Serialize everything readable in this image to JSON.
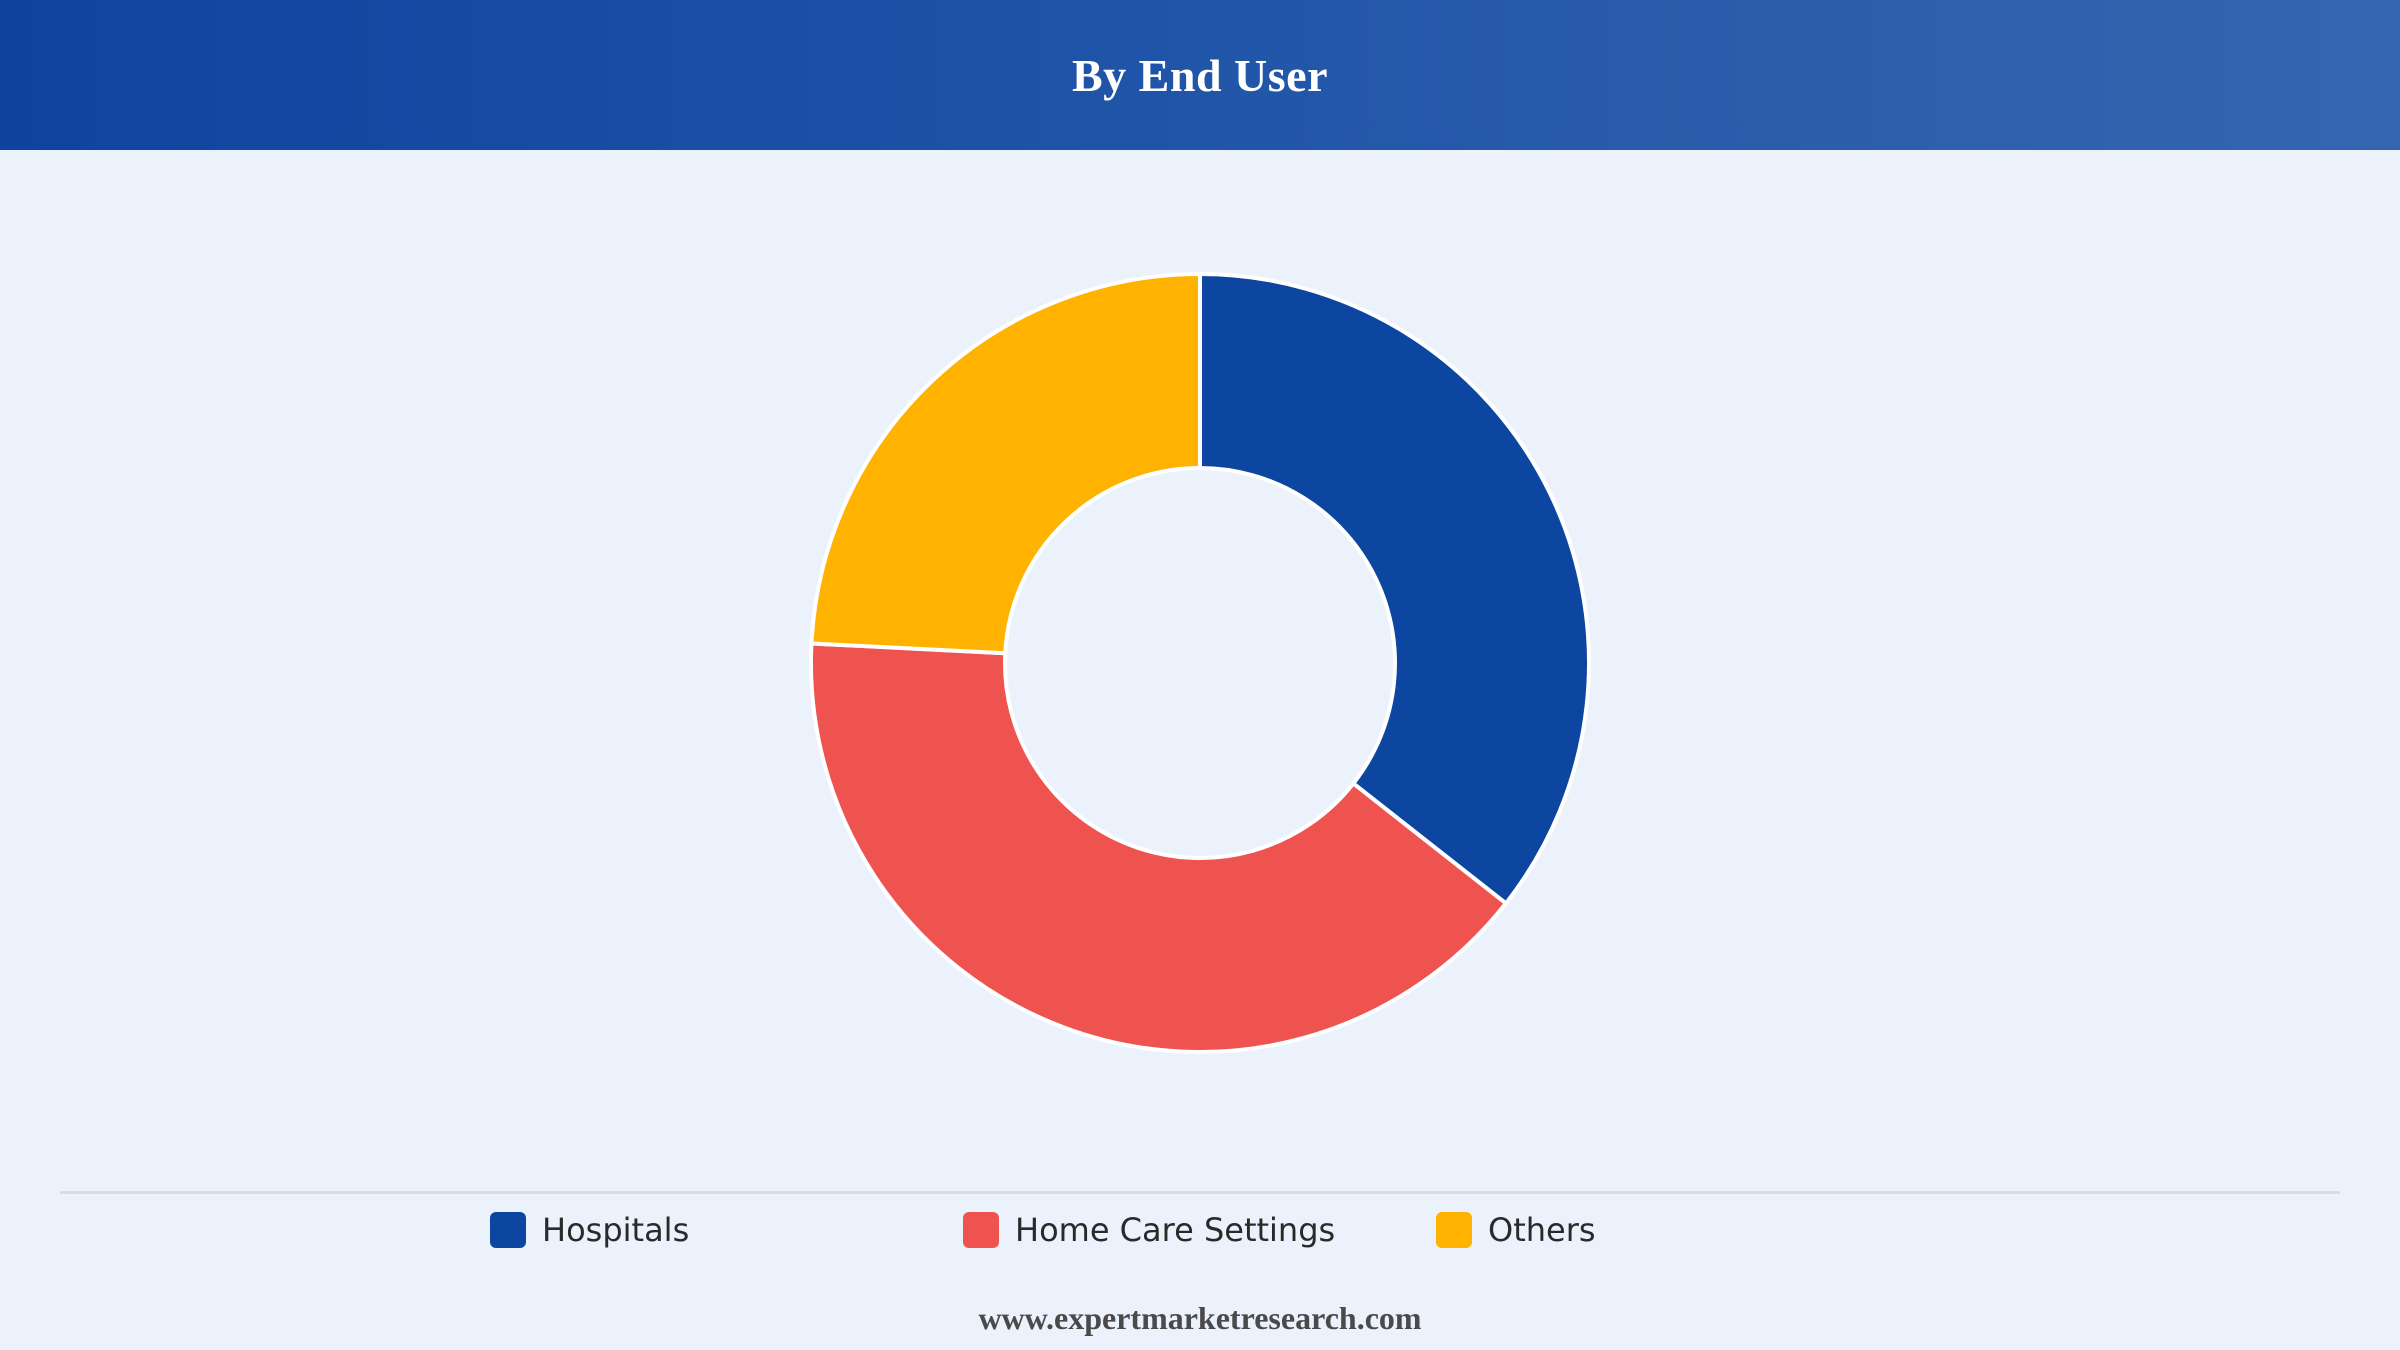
{
  "header": {
    "title": "By End User"
  },
  "chart_data": {
    "type": "pie",
    "donut": true,
    "title": "By End User",
    "categories": [
      "Hospitals",
      "Home Care Settings",
      "Others"
    ],
    "values": [
      35.6,
      40.2,
      24.2
    ],
    "colors": [
      "#0d46a0",
      "#ef5350",
      "#ffb300"
    ],
    "legend_position": "bottom"
  },
  "legend": {
    "items": [
      {
        "label": "Hospitals",
        "color": "#0d46a0"
      },
      {
        "label": "Home Care Settings",
        "color": "#ef5350"
      },
      {
        "label": "Others",
        "color": "#ffb300"
      }
    ]
  },
  "footer": {
    "source": "www.expertmarketresearch.com"
  }
}
